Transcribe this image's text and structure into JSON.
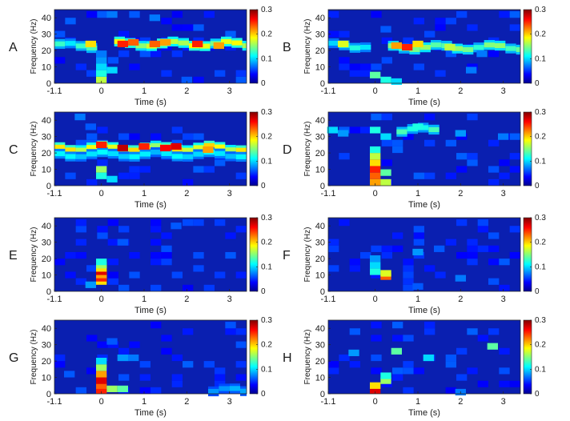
{
  "colormap": {
    "name": "jet",
    "stops": [
      "#00008f",
      "#0000ff",
      "#00ffff",
      "#ffff00",
      "#ff0000",
      "#800000"
    ],
    "background_color": "#0a1fb0"
  },
  "chart_data": [
    {
      "panel": "A",
      "type": "heatmap",
      "xlabel": "Time (s)",
      "ylabel": "Frequency (Hz)",
      "xlim": [
        -1.1,
        3.4
      ],
      "ylim": [
        0,
        45
      ],
      "xticks": [
        -1.1,
        0,
        1,
        2,
        3
      ],
      "xtick_labels": [
        "-1.1",
        "0",
        "1",
        "2",
        "3"
      ],
      "yticks": [
        0,
        10,
        20,
        30,
        40
      ],
      "ytick_labels": [
        "0",
        "10",
        "20",
        "30",
        "40"
      ],
      "clim": [
        0,
        0.3
      ],
      "colorbar_ticks": [
        "0",
        "0.1",
        "0.2",
        "0.3"
      ],
      "bands": [
        {
          "t0": -1.1,
          "t1": -0.1,
          "f": 23,
          "v": 0.1
        },
        {
          "t0": 0.3,
          "t1": 3.4,
          "f": 24,
          "v": 0.15
        }
      ],
      "cells": [
        {
          "t": 0,
          "f": 2,
          "v": 0.15
        },
        {
          "t": 0,
          "f": 6,
          "v": 0.1
        },
        {
          "t": 0,
          "f": 10,
          "v": 0.08
        },
        {
          "t": 0,
          "f": 14,
          "v": 0.06
        },
        {
          "t": 0,
          "f": 18,
          "v": 0.05
        },
        {
          "t": 0.25,
          "f": 8,
          "v": 0.08
        },
        {
          "t": -0.25,
          "f": 24,
          "v": 0.18
        },
        {
          "t": 0.5,
          "f": 24,
          "v": 0.24
        },
        {
          "t": 0.75,
          "f": 25,
          "v": 0.22
        },
        {
          "t": 1.25,
          "f": 24,
          "v": 0.22
        },
        {
          "t": 1.5,
          "f": 25,
          "v": 0.2
        },
        {
          "t": 2.25,
          "f": 24,
          "v": 0.24
        },
        {
          "t": 2.75,
          "f": 23,
          "v": 0.2
        },
        {
          "t": 0.25,
          "f": 42,
          "v": 0.05
        },
        {
          "t": 1.25,
          "f": 40,
          "v": 0.05
        },
        {
          "t": 2.0,
          "f": 2,
          "v": 0.04
        }
      ]
    },
    {
      "panel": "B",
      "type": "heatmap",
      "xlabel": "Time (s)",
      "ylabel": "Frequency (Hz)",
      "xlim": [
        -1.1,
        3.4
      ],
      "ylim": [
        0,
        45
      ],
      "xticks": [
        -1.1,
        0,
        1,
        2,
        3
      ],
      "xtick_labels": [
        "-1.1",
        "0",
        "1",
        "2",
        "3"
      ],
      "yticks": [
        0,
        10,
        20,
        30,
        40
      ],
      "ytick_labels": [
        "0",
        "10",
        "20",
        "30",
        "40"
      ],
      "clim": [
        0,
        0.3
      ],
      "colorbar_ticks": [
        "0",
        "0.1",
        "0.2",
        "0.3"
      ],
      "bands": [
        {
          "t0": -1.1,
          "t1": -0.1,
          "f": 23,
          "v": 0.09
        },
        {
          "t0": 0.3,
          "t1": 3.4,
          "f": 22,
          "v": 0.12
        }
      ],
      "cells": [
        {
          "t": -0.75,
          "f": 24,
          "v": 0.16
        },
        {
          "t": 0.5,
          "f": 23,
          "v": 0.2
        },
        {
          "t": 0.75,
          "f": 22,
          "v": 0.24
        },
        {
          "t": 1.0,
          "f": 24,
          "v": 0.18
        },
        {
          "t": 1.75,
          "f": 22,
          "v": 0.15
        },
        {
          "t": 0,
          "f": 5,
          "v": 0.12
        },
        {
          "t": 0.25,
          "f": 2,
          "v": 0.1
        },
        {
          "t": 0.5,
          "f": 1,
          "v": 0.08
        },
        {
          "t": 2.25,
          "f": 8,
          "v": 0.05
        },
        {
          "t": 2.5,
          "f": 18,
          "v": 0.05
        },
        {
          "t": 0.25,
          "f": 33,
          "v": 0.04
        }
      ]
    },
    {
      "panel": "C",
      "type": "heatmap",
      "xlabel": "Time (s)",
      "ylabel": "Frequency (Hz)",
      "xlim": [
        -1.1,
        3.4
      ],
      "ylim": [
        0,
        45
      ],
      "xticks": [
        -1.1,
        0,
        1,
        2,
        3
      ],
      "xtick_labels": [
        "-1.1",
        "0",
        "1",
        "2",
        "3"
      ],
      "yticks": [
        0,
        10,
        20,
        30,
        40
      ],
      "ytick_labels": [
        "0",
        "10",
        "20",
        "30",
        "40"
      ],
      "clim": [
        0,
        0.3
      ],
      "colorbar_ticks": [
        "0",
        "0.1",
        "0.2",
        "0.3"
      ],
      "bands": [
        {
          "t0": -1.1,
          "t1": 3.4,
          "f": 23,
          "v": 0.16
        },
        {
          "t0": -1.1,
          "t1": 3.4,
          "f": 19,
          "v": 0.08
        }
      ],
      "cells": [
        {
          "t": 0,
          "f": 25,
          "v": 0.24
        },
        {
          "t": 0.5,
          "f": 23,
          "v": 0.27
        },
        {
          "t": 1.0,
          "f": 24,
          "v": 0.24
        },
        {
          "t": 1.5,
          "f": 23,
          "v": 0.25
        },
        {
          "t": 1.75,
          "f": 24,
          "v": 0.26
        },
        {
          "t": 2.5,
          "f": 22,
          "v": 0.2
        },
        {
          "t": 0,
          "f": 10,
          "v": 0.14
        },
        {
          "t": 0,
          "f": 6,
          "v": 0.1
        },
        {
          "t": 0.25,
          "f": 4,
          "v": 0.08
        },
        {
          "t": -0.5,
          "f": 42,
          "v": 0.05
        },
        {
          "t": -0.25,
          "f": 36,
          "v": 0.04
        }
      ]
    },
    {
      "panel": "D",
      "type": "heatmap",
      "xlabel": "Time (s)",
      "ylabel": "Frequency (Hz)",
      "xlim": [
        -1.1,
        3.4
      ],
      "ylim": [
        0,
        45
      ],
      "xticks": [
        -1.1,
        0,
        1,
        2,
        3
      ],
      "xtick_labels": [
        "-1.1",
        "0",
        "1",
        "2",
        "3"
      ],
      "yticks": [
        0,
        10,
        20,
        30,
        40
      ],
      "ytick_labels": [
        "0",
        "10",
        "20",
        "30",
        "40"
      ],
      "clim": [
        0,
        0.3
      ],
      "colorbar_ticks": [
        "0",
        "0.1",
        "0.2",
        "0.3"
      ],
      "bands": [
        {
          "t0": 0.5,
          "t1": 1.5,
          "f": 34,
          "v": 0.1
        }
      ],
      "cells": [
        {
          "t": -1.0,
          "f": 34,
          "v": 0.08
        },
        {
          "t": -0.75,
          "f": 32,
          "v": 0.06
        },
        {
          "t": 0,
          "f": 34,
          "v": 0.1
        },
        {
          "t": 0,
          "f": 2,
          "v": 0.2
        },
        {
          "t": 0,
          "f": 6,
          "v": 0.22
        },
        {
          "t": 0,
          "f": 10,
          "v": 0.24
        },
        {
          "t": 0,
          "f": 14,
          "v": 0.18
        },
        {
          "t": 0,
          "f": 18,
          "v": 0.15
        },
        {
          "t": 0,
          "f": 22,
          "v": 0.1
        },
        {
          "t": 0.25,
          "f": 8,
          "v": 0.12
        },
        {
          "t": 0.25,
          "f": 2,
          "v": 0.15
        },
        {
          "t": 0.25,
          "f": 30,
          "v": 0.08
        },
        {
          "t": 1.0,
          "f": 36,
          "v": 0.1
        },
        {
          "t": 2.0,
          "f": 32,
          "v": 0.06
        },
        {
          "t": 3.0,
          "f": 30,
          "v": 0.05
        }
      ]
    },
    {
      "panel": "E",
      "type": "heatmap",
      "xlabel": "Time (s)",
      "ylabel": "Frequency (Hz)",
      "xlim": [
        -1.1,
        3.4
      ],
      "ylim": [
        0,
        45
      ],
      "xticks": [
        -1.1,
        0,
        1,
        2,
        3
      ],
      "xtick_labels": [
        "-1.1",
        "0",
        "1",
        "2",
        "3"
      ],
      "yticks": [
        0,
        10,
        20,
        30,
        40
      ],
      "ytick_labels": [
        "0",
        "10",
        "20",
        "30",
        "40"
      ],
      "clim": [
        0,
        0.3
      ],
      "colorbar_ticks": [
        "0",
        "0.1",
        "0.2",
        "0.3"
      ],
      "bands": [],
      "cells": [
        {
          "t": 0,
          "f": 6,
          "v": 0.18
        },
        {
          "t": 0,
          "f": 8,
          "v": 0.24
        },
        {
          "t": 0,
          "f": 10,
          "v": 0.2
        },
        {
          "t": 0,
          "f": 12,
          "v": 0.26
        },
        {
          "t": 0,
          "f": 14,
          "v": 0.18
        },
        {
          "t": 0,
          "f": 16,
          "v": 0.14
        },
        {
          "t": 0,
          "f": 18,
          "v": 0.1
        },
        {
          "t": -0.25,
          "f": 4,
          "v": 0.06
        },
        {
          "t": 0.5,
          "f": 30,
          "v": 0.04
        },
        {
          "t": 1.75,
          "f": 40,
          "v": 0.04
        }
      ]
    },
    {
      "panel": "F",
      "type": "heatmap",
      "xlabel": "Time (s)",
      "ylabel": "Frequency (Hz)",
      "xlim": [
        -1.1,
        3.4
      ],
      "ylim": [
        0,
        45
      ],
      "xticks": [
        -1.1,
        0,
        1,
        2,
        3
      ],
      "xtick_labels": [
        "-1.1",
        "0",
        "1",
        "2",
        "3"
      ],
      "yticks": [
        0,
        10,
        20,
        30,
        40
      ],
      "ytick_labels": [
        "0",
        "10",
        "20",
        "30",
        "40"
      ],
      "clim": [
        0,
        0.3
      ],
      "colorbar_ticks": [
        "0",
        "0.1",
        "0.2",
        "0.3"
      ],
      "bands": [],
      "cells": [
        {
          "t": 0,
          "f": 12,
          "v": 0.1
        },
        {
          "t": 0,
          "f": 16,
          "v": 0.08
        },
        {
          "t": 0,
          "f": 20,
          "v": 0.06
        },
        {
          "t": 0.25,
          "f": 9,
          "v": 0.22
        },
        {
          "t": 0.25,
          "f": 11,
          "v": 0.16
        },
        {
          "t": 1.0,
          "f": 24,
          "v": 0.06
        },
        {
          "t": 1.5,
          "f": 26,
          "v": 0.04
        },
        {
          "t": 2.0,
          "f": 8,
          "v": 0.05
        },
        {
          "t": 1.0,
          "f": 3,
          "v": 0.04
        }
      ]
    },
    {
      "panel": "G",
      "type": "heatmap",
      "xlabel": "Time (s)",
      "ylabel": "Frequency (Hz)",
      "xlim": [
        -1.1,
        3.4
      ],
      "ylim": [
        0,
        45
      ],
      "xticks": [
        -1.1,
        0,
        1,
        2,
        3
      ],
      "xtick_labels": [
        "-1.1",
        "0",
        "1",
        "2",
        "3"
      ],
      "yticks": [
        0,
        10,
        20,
        30,
        40
      ],
      "ytick_labels": [
        "0",
        "10",
        "20",
        "30",
        "40"
      ],
      "clim": [
        0,
        0.3
      ],
      "colorbar_ticks": [
        "0",
        "0.1",
        "0.2",
        "0.3"
      ],
      "bands": [
        {
          "t0": 2.5,
          "t1": 3.4,
          "f": 2,
          "v": 0.06
        }
      ],
      "cells": [
        {
          "t": 0,
          "f": 2,
          "v": 0.24
        },
        {
          "t": 0,
          "f": 5,
          "v": 0.22
        },
        {
          "t": 0,
          "f": 8,
          "v": 0.26
        },
        {
          "t": 0,
          "f": 12,
          "v": 0.2
        },
        {
          "t": 0,
          "f": 16,
          "v": 0.14
        },
        {
          "t": 0,
          "f": 20,
          "v": 0.08
        },
        {
          "t": 0.25,
          "f": 3,
          "v": 0.14
        },
        {
          "t": 0.5,
          "f": 3,
          "v": 0.12
        },
        {
          "t": 0.5,
          "f": 22,
          "v": 0.06
        },
        {
          "t": 0.75,
          "f": 22,
          "v": 0.05
        },
        {
          "t": -0.75,
          "f": 12,
          "v": 0.04
        },
        {
          "t": 0.25,
          "f": 32,
          "v": 0.04
        }
      ]
    },
    {
      "panel": "H",
      "type": "heatmap",
      "xlabel": "Time (s)",
      "ylabel": "Frequency (Hz)",
      "xlim": [
        -1.1,
        3.4
      ],
      "ylim": [
        0,
        45
      ],
      "xticks": [
        -1.1,
        0,
        1,
        2,
        3
      ],
      "xtick_labels": [
        "-1.1",
        "0",
        "1",
        "2",
        "3"
      ],
      "yticks": [
        0,
        10,
        20,
        30,
        40
      ],
      "ytick_labels": [
        "0",
        "10",
        "20",
        "30",
        "40"
      ],
      "clim": [
        0,
        0.3
      ],
      "colorbar_ticks": [
        "0",
        "0.1",
        "0.2",
        "0.3"
      ],
      "bands": [],
      "cells": [
        {
          "t": 0,
          "f": 2,
          "v": 0.26
        },
        {
          "t": 0,
          "f": 5,
          "v": 0.18
        },
        {
          "t": 0.25,
          "f": 8,
          "v": 0.14
        },
        {
          "t": 0.25,
          "f": 11,
          "v": 0.1
        },
        {
          "t": 0.5,
          "f": 26,
          "v": 0.12
        },
        {
          "t": 1.25,
          "f": 22,
          "v": 0.08
        },
        {
          "t": -0.5,
          "f": 25,
          "v": 0.06
        },
        {
          "t": 2.75,
          "f": 29,
          "v": 0.12
        },
        {
          "t": 2.0,
          "f": 1,
          "v": 0.05
        }
      ]
    }
  ]
}
